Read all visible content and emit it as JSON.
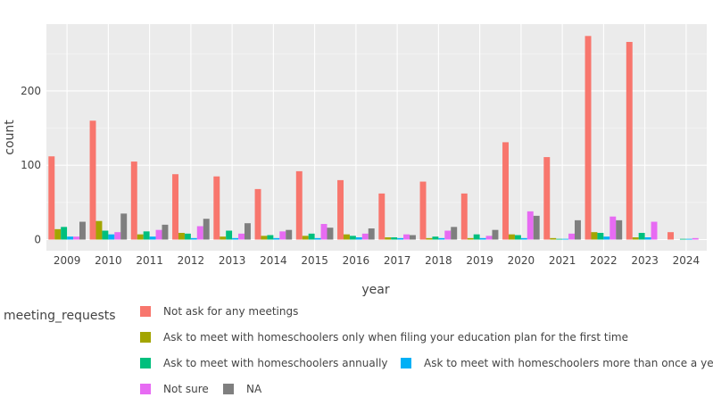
{
  "chart_data": {
    "type": "bar",
    "xlabel": "year",
    "ylabel": "count",
    "ylim": [
      -15,
      290
    ],
    "yticks": [
      0,
      100,
      200
    ],
    "grid": true,
    "categories": [
      "2009",
      "2010",
      "2011",
      "2012",
      "2013",
      "2014",
      "2015",
      "2016",
      "2017",
      "2018",
      "2019",
      "2020",
      "2021",
      "2022",
      "2023",
      "2024"
    ],
    "legend_title": "meeting_requests",
    "legend_position": "bottom",
    "series": [
      {
        "name": "Not ask for any meetings",
        "color": "#F8766D",
        "values": [
          112,
          160,
          105,
          88,
          85,
          68,
          92,
          80,
          62,
          78,
          62,
          131,
          111,
          274,
          266,
          10
        ]
      },
      {
        "name": "Ask to meet with homeschoolers only when filing your education plan for the first time",
        "color": "#A3A500",
        "values": [
          14,
          25,
          7,
          9,
          4,
          5,
          5,
          7,
          3,
          2,
          2,
          7,
          2,
          10,
          3,
          0
        ]
      },
      {
        "name": "Ask to meet with homeschoolers annually",
        "color": "#00BF7D",
        "values": [
          17,
          12,
          11,
          8,
          12,
          6,
          8,
          5,
          3,
          4,
          7,
          6,
          1,
          9,
          9,
          1
        ]
      },
      {
        "name": "Ask to meet with homeschoolers more than once a yea",
        "color": "#00B0F6",
        "values": [
          4,
          7,
          4,
          2,
          2,
          2,
          2,
          3,
          2,
          2,
          2,
          2,
          1,
          4,
          3,
          1
        ]
      },
      {
        "name": "Not sure",
        "color": "#E76BF3",
        "values": [
          4,
          10,
          13,
          18,
          8,
          11,
          21,
          8,
          7,
          12,
          5,
          38,
          8,
          31,
          24,
          2
        ]
      },
      {
        "name": "NA",
        "color": "#7F7F7F",
        "values": [
          24,
          35,
          20,
          28,
          22,
          13,
          16,
          15,
          6,
          17,
          13,
          32,
          26,
          26,
          0,
          0
        ]
      }
    ]
  }
}
